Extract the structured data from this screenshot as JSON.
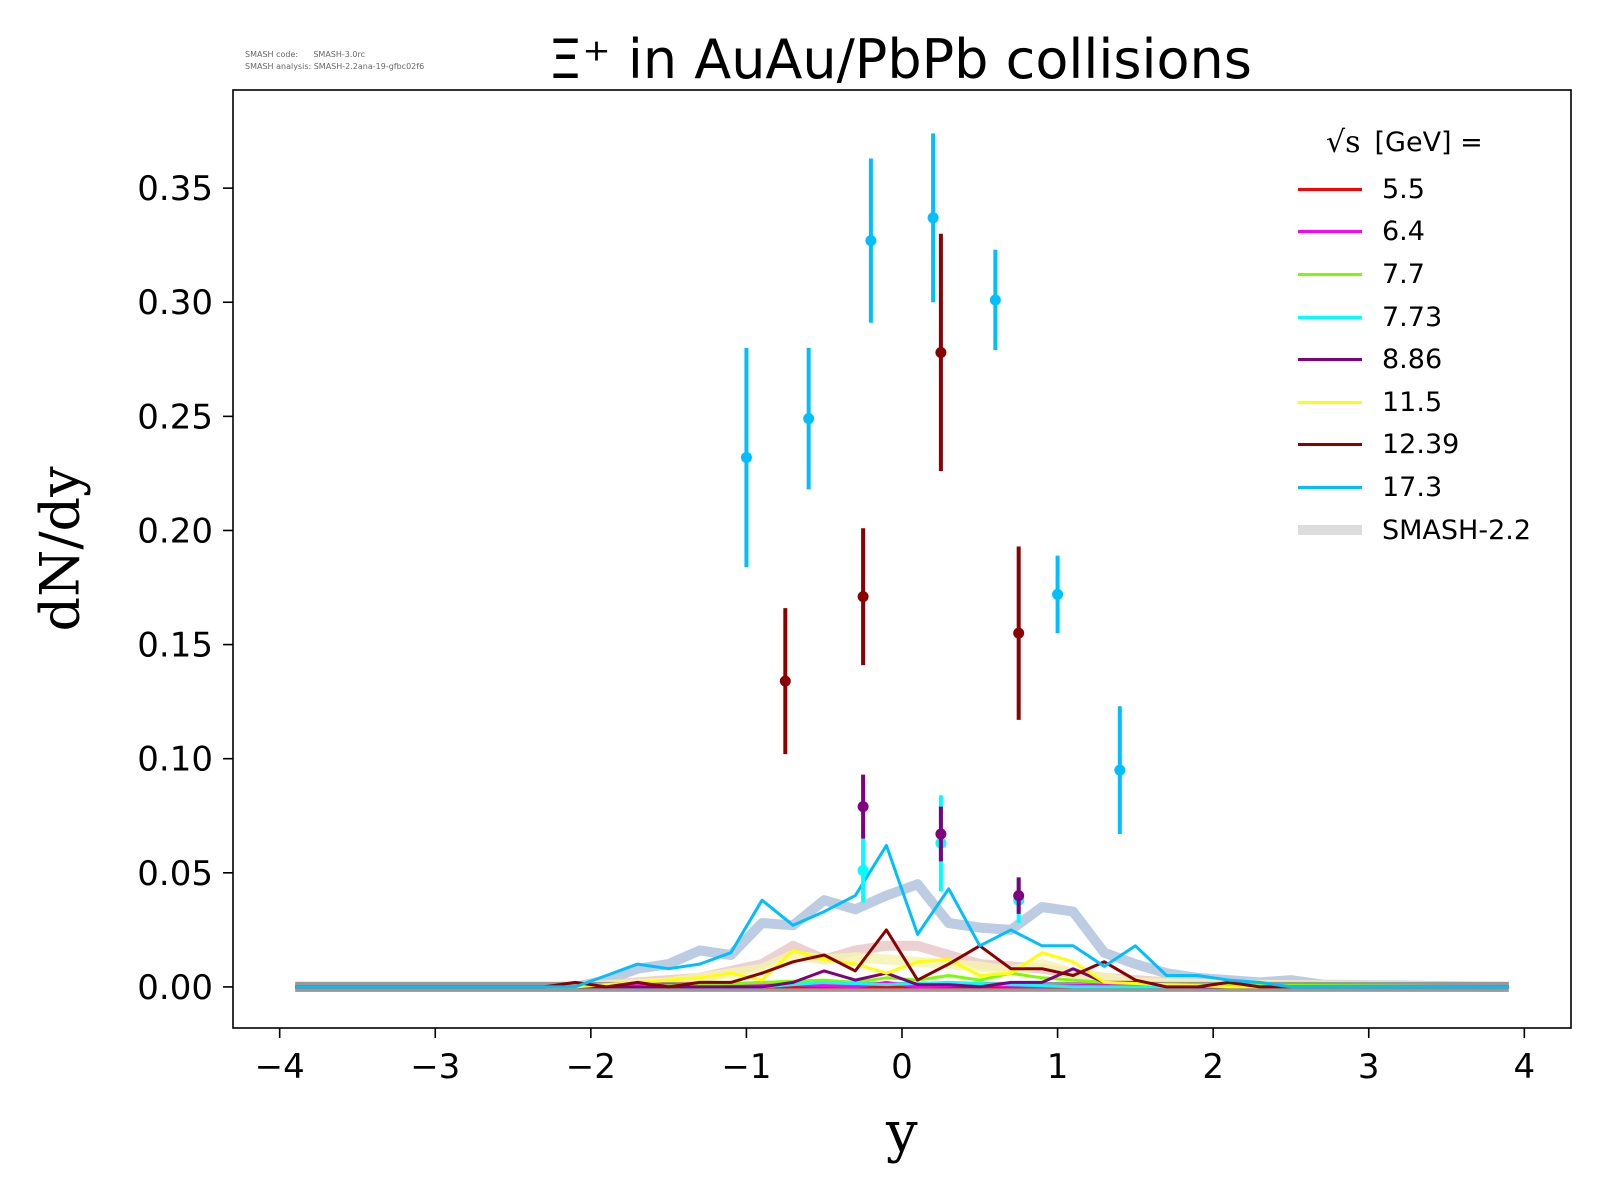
{
  "meta": {
    "line1": "SMASH code:      SMASH-3.0rc",
    "line2": "SMASH analysis: SMASH-2.2ana-19-gfbc02f6"
  },
  "chart_data": {
    "type": "line",
    "title": "Ξ⁺ in AuAu/PbPb collisions",
    "xlabel": "y",
    "ylabel": "dN/dy",
    "xlim": [
      -4.3,
      4.3
    ],
    "ylim": [
      -0.018,
      0.393
    ],
    "xticks": [
      -4,
      -3,
      -2,
      -1,
      0,
      1,
      2,
      3,
      4
    ],
    "xtick_labels": [
      "−4",
      "−3",
      "−2",
      "−1",
      "0",
      "1",
      "2",
      "3",
      "4"
    ],
    "yticks": [
      0.0,
      0.05,
      0.1,
      0.15,
      0.2,
      0.25,
      0.3,
      0.35
    ],
    "ytick_labels": [
      "0.00",
      "0.05",
      "0.10",
      "0.15",
      "0.20",
      "0.25",
      "0.30",
      "0.35"
    ],
    "grid": false,
    "legend": {
      "placement": "top-right",
      "title_sqrt": "√s",
      "title_text": "[GeV] =",
      "entries": [
        {
          "label": "5.5",
          "color": "#ff0000"
        },
        {
          "label": "6.4",
          "color": "#ff00ff"
        },
        {
          "label": "7.7",
          "color": "#7cfc00"
        },
        {
          "label": "7.73",
          "color": "#00ffff"
        },
        {
          "label": "8.86",
          "color": "#800080"
        },
        {
          "label": "11.5",
          "color": "#ffff00"
        },
        {
          "label": "12.39",
          "color": "#8b0000"
        },
        {
          "label": "17.3",
          "color": "#00bfff"
        },
        {
          "label": "SMASH-2.2",
          "color": "#dddddd",
          "style": "band"
        }
      ]
    },
    "smash_bands": [
      {
        "color": "#b0c4de",
        "x": [
          -3.9,
          -2.1,
          -1.9,
          -1.7,
          -1.5,
          -1.3,
          -1.1,
          -0.9,
          -0.7,
          -0.5,
          -0.3,
          -0.1,
          0.1,
          0.3,
          0.5,
          0.7,
          0.9,
          1.1,
          1.3,
          1.5,
          1.7,
          1.9,
          2.1,
          2.3,
          2.5,
          2.7,
          3.9
        ],
        "y": [
          0.0,
          0.0,
          0.003,
          0.008,
          0.01,
          0.016,
          0.014,
          0.028,
          0.027,
          0.038,
          0.034,
          0.04,
          0.045,
          0.028,
          0.026,
          0.025,
          0.035,
          0.033,
          0.015,
          0.01,
          0.006,
          0.004,
          0.003,
          0.002,
          0.003,
          0.001,
          0.0
        ]
      },
      {
        "color": "#e8c9c9",
        "x": [
          -3.9,
          -2.1,
          -1.7,
          -1.3,
          -0.9,
          -0.7,
          -0.5,
          -0.3,
          -0.1,
          0.1,
          0.3,
          0.5,
          0.7,
          0.9,
          1.1,
          1.3,
          1.7,
          2.1,
          3.9
        ],
        "y": [
          0.0,
          0.0,
          0.002,
          0.004,
          0.01,
          0.018,
          0.012,
          0.016,
          0.018,
          0.018,
          0.014,
          0.01,
          0.009,
          0.008,
          0.006,
          0.004,
          0.002,
          0.001,
          0.0
        ]
      },
      {
        "color": "#f5f3b0",
        "x": [
          -3.9,
          -2.1,
          -1.5,
          -1.1,
          -0.9,
          -0.7,
          -0.5,
          -0.3,
          -0.1,
          0.1,
          0.3,
          0.5,
          0.7,
          0.9,
          1.1,
          1.5,
          2.1,
          3.9
        ],
        "y": [
          0.0,
          0.0,
          0.002,
          0.006,
          0.008,
          0.014,
          0.012,
          0.013,
          0.012,
          0.011,
          0.01,
          0.009,
          0.007,
          0.01,
          0.006,
          0.002,
          0.001,
          0.0
        ]
      }
    ],
    "series": [
      {
        "name": "5.5",
        "color": "#ff0000",
        "x": [
          -3.9,
          3.9
        ],
        "y": [
          0.0,
          0.0
        ],
        "points": []
      },
      {
        "name": "6.4",
        "color": "#ff00ff",
        "x": [
          -3.9,
          -1.9,
          -1.5,
          -1.1,
          -0.7,
          -0.3,
          -0.1,
          0.1,
          0.5,
          0.9,
          1.3,
          1.7,
          3.9
        ],
        "y": [
          0.0,
          0.0,
          0.001,
          0.0,
          0.001,
          0.0,
          0.002,
          0.0,
          0.001,
          0.0,
          0.001,
          0.0,
          0.0
        ],
        "points": []
      },
      {
        "name": "7.7",
        "color": "#7cfc00",
        "x": [
          -3.9,
          -1.7,
          -1.3,
          -0.9,
          -0.5,
          -0.3,
          -0.1,
          0.1,
          0.3,
          0.5,
          0.7,
          0.9,
          1.1,
          1.3,
          1.7,
          3.9
        ],
        "y": [
          0.0,
          0.0,
          0.001,
          0.002,
          0.003,
          0.002,
          0.004,
          0.003,
          0.005,
          0.003,
          0.006,
          0.004,
          0.003,
          0.002,
          0.001,
          0.0
        ],
        "points": []
      },
      {
        "name": "7.73",
        "color": "#00ffff",
        "x": [
          -3.9,
          -0.9,
          -0.5,
          -0.1,
          0.3,
          0.7,
          1.1,
          1.5,
          3.9
        ],
        "y": [
          0.0,
          0.0,
          0.002,
          0.001,
          0.002,
          0.001,
          0.0,
          0.0,
          0.0
        ],
        "points": [
          {
            "x": -0.25,
            "y": 0.051,
            "err": 0.014
          },
          {
            "x": 0.25,
            "y": 0.063,
            "err": 0.021
          },
          {
            "x": 0.75,
            "y": 0.038,
            "err": 0.01
          }
        ]
      },
      {
        "name": "8.86",
        "color": "#800080",
        "x": [
          -3.9,
          -1.9,
          -1.5,
          -1.1,
          -0.9,
          -0.7,
          -0.5,
          -0.3,
          -0.1,
          0.1,
          0.3,
          0.5,
          0.7,
          0.9,
          1.1,
          1.3,
          1.5,
          1.9,
          3.9
        ],
        "y": [
          0.0,
          0.0,
          0.0,
          0.0,
          0.0,
          0.002,
          0.007,
          0.003,
          0.006,
          0.001,
          0.001,
          0.0,
          0.002,
          0.002,
          0.008,
          0.002,
          0.002,
          0.0,
          0.0
        ],
        "points": [
          {
            "x": -0.25,
            "y": 0.079,
            "err": 0.014
          },
          {
            "x": 0.25,
            "y": 0.067,
            "err": 0.012
          },
          {
            "x": 0.75,
            "y": 0.04,
            "err": 0.008
          }
        ]
      },
      {
        "name": "11.5",
        "color": "#ffff00",
        "x": [
          -3.9,
          -2.1,
          -1.7,
          -1.3,
          -1.1,
          -0.9,
          -0.7,
          -0.5,
          -0.3,
          -0.1,
          0.1,
          0.3,
          0.5,
          0.7,
          0.9,
          1.1,
          1.3,
          1.7,
          2.1,
          3.9
        ],
        "y": [
          0.0,
          0.0,
          0.002,
          0.004,
          0.006,
          0.003,
          0.016,
          0.012,
          0.01,
          0.006,
          0.011,
          0.012,
          0.005,
          0.006,
          0.015,
          0.011,
          0.002,
          0.001,
          0.0,
          0.0
        ],
        "points": []
      },
      {
        "name": "12.39",
        "color": "#8b0000",
        "x": [
          -3.9,
          -2.3,
          -2.1,
          -1.9,
          -1.7,
          -1.5,
          -1.3,
          -1.1,
          -0.9,
          -0.7,
          -0.5,
          -0.3,
          -0.1,
          0.1,
          0.3,
          0.5,
          0.7,
          0.9,
          1.1,
          1.3,
          1.5,
          1.7,
          1.9,
          2.1,
          2.3,
          3.9
        ],
        "y": [
          0.0,
          0.0,
          0.002,
          0.0,
          0.002,
          0.0,
          0.002,
          0.002,
          0.006,
          0.011,
          0.014,
          0.007,
          0.025,
          0.003,
          0.01,
          0.018,
          0.008,
          0.008,
          0.005,
          0.011,
          0.003,
          0.0,
          0.0,
          0.002,
          0.0,
          0.0
        ],
        "points": [
          {
            "x": -0.75,
            "y": 0.134,
            "err": 0.032
          },
          {
            "x": -0.25,
            "y": 0.171,
            "err": 0.03
          },
          {
            "x": 0.25,
            "y": 0.278,
            "err": 0.052
          },
          {
            "x": 0.75,
            "y": 0.155,
            "err": 0.038
          }
        ]
      },
      {
        "name": "17.3",
        "color": "#00bfff",
        "x": [
          -3.9,
          -2.1,
          -1.9,
          -1.7,
          -1.5,
          -1.3,
          -1.1,
          -0.9,
          -0.7,
          -0.5,
          -0.3,
          -0.1,
          0.1,
          0.3,
          0.5,
          0.7,
          0.9,
          1.1,
          1.3,
          1.5,
          1.7,
          1.9,
          2.1,
          2.3,
          2.5,
          2.7,
          3.9
        ],
        "y": [
          0.0,
          0.0,
          0.005,
          0.01,
          0.008,
          0.01,
          0.015,
          0.038,
          0.027,
          0.033,
          0.04,
          0.062,
          0.023,
          0.043,
          0.018,
          0.025,
          0.018,
          0.018,
          0.009,
          0.018,
          0.005,
          0.005,
          0.003,
          0.002,
          0.0,
          0.0,
          0.0
        ],
        "points": [
          {
            "x": -1.0,
            "y": 0.232,
            "err": 0.048
          },
          {
            "x": -0.6,
            "y": 0.249,
            "err": 0.031
          },
          {
            "x": -0.2,
            "y": 0.327,
            "err": 0.036
          },
          {
            "x": 0.2,
            "y": 0.337,
            "err": 0.037
          },
          {
            "x": 0.6,
            "y": 0.301,
            "err": 0.022
          },
          {
            "x": 1.0,
            "y": 0.172,
            "err": 0.017
          },
          {
            "x": 1.4,
            "y": 0.095,
            "err": 0.028
          }
        ]
      }
    ]
  }
}
